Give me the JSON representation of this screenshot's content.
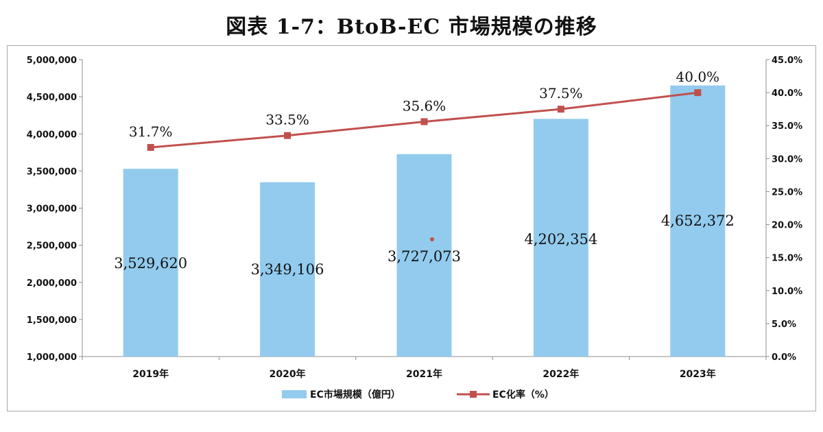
{
  "title": "図表 1-7：BtoB-EC 市場規模の推移",
  "chart_data": {
    "type": "bar",
    "categories": [
      "2019年",
      "2020年",
      "2021年",
      "2022年",
      "2023年"
    ],
    "series": [
      {
        "name": "EC市場規模（億円）",
        "kind": "bar",
        "axis": "left",
        "color": "#92cbee",
        "values": [
          3529620,
          3349106,
          3727073,
          4202354,
          4652372
        ],
        "labels": [
          "3,529,620",
          "3,349,106",
          "3,727,073",
          "4,202,354",
          "4,652,372"
        ]
      },
      {
        "name": "EC化率（%）",
        "kind": "line",
        "axis": "right",
        "color": "#c0504d",
        "values": [
          31.7,
          33.5,
          35.6,
          37.5,
          40.0
        ],
        "labels": [
          "31.7%",
          "33.5%",
          "35.6%",
          "37.5%",
          "40.0%"
        ]
      }
    ],
    "y_left": {
      "range": [
        1000000,
        5000000
      ],
      "ticks": [
        "1,000,000",
        "1,500,000",
        "2,000,000",
        "2,500,000",
        "3,000,000",
        "3,500,000",
        "4,000,000",
        "4,500,000",
        "5,000,000"
      ]
    },
    "y_right": {
      "range": [
        0,
        45
      ],
      "ticks": [
        "0.0%",
        "5.0%",
        "10.0%",
        "15.0%",
        "20.0%",
        "25.0%",
        "30.0%",
        "35.0%",
        "40.0%",
        "45.0%"
      ]
    },
    "grid": false,
    "legend": "bottom"
  }
}
